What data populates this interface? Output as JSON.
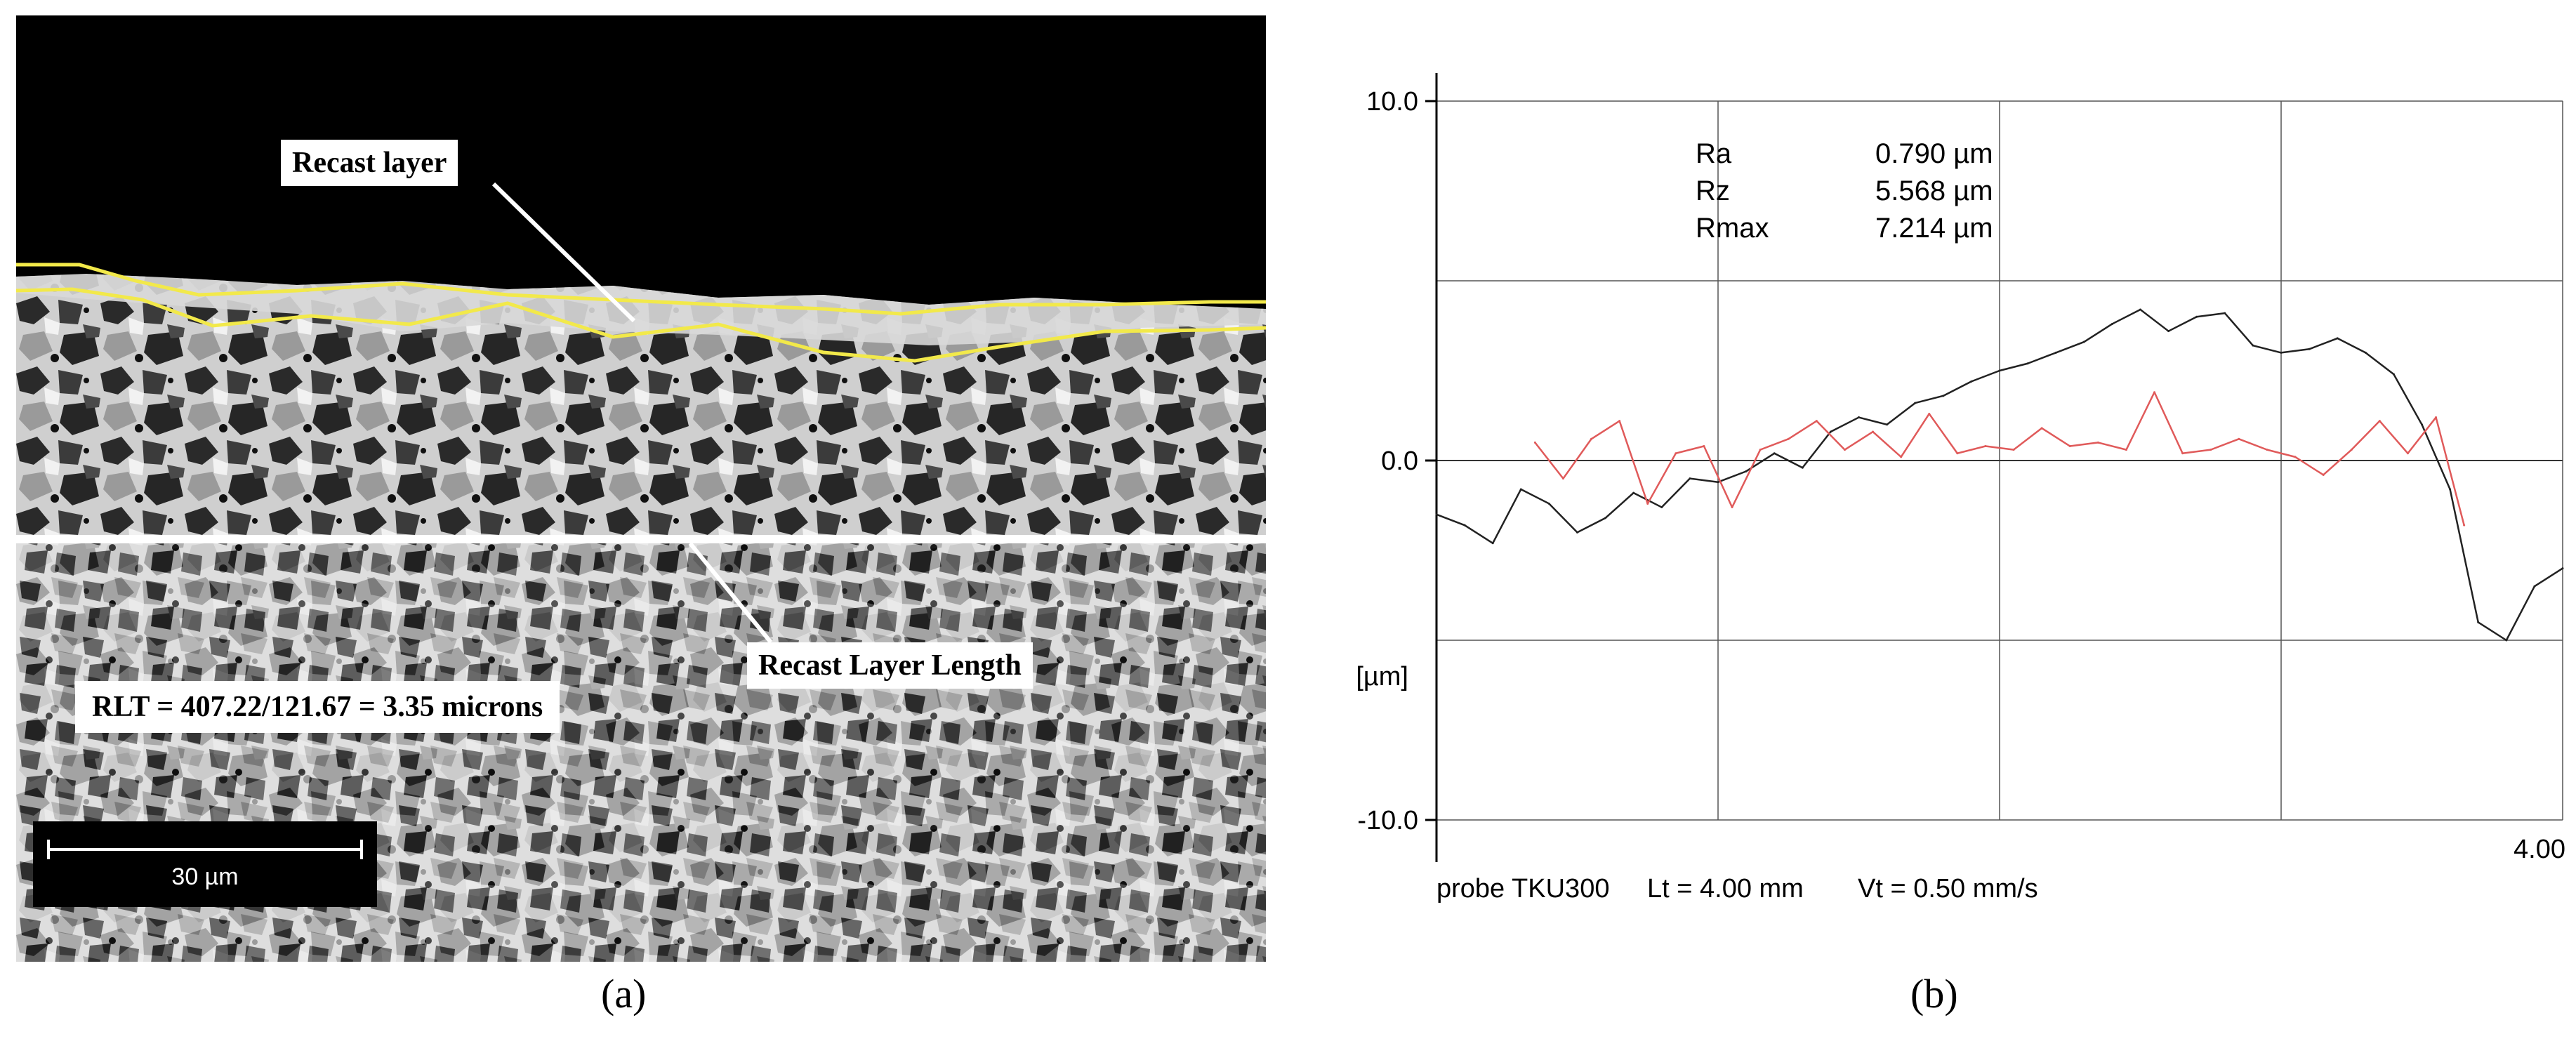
{
  "figure": {
    "panel_a": {
      "caption": "(a)",
      "callouts": {
        "recast_layer": "Recast layer",
        "recast_layer_length": "Recast Layer Length",
        "rlt": "RLT = 407.22/121.67 = 3.35 microns"
      },
      "scale_bar": "30 µm",
      "colors": {
        "outline": "#f2e94a",
        "background_top": "#000000"
      }
    },
    "panel_b": {
      "caption": "(b)",
      "chart_data": {
        "type": "line",
        "ylabel": "[µm]",
        "ylim": [
          -10.0,
          10.0
        ],
        "xlim": [
          0,
          4.0
        ],
        "y_ticks": [
          "10.0",
          "0.0",
          "-10.0"
        ],
        "x_tick_end": "4.00",
        "footer": {
          "probe": "probe TKU300",
          "lt": "Lt = 4.00  mm",
          "vt": "Vt = 0.50  mm/s"
        },
        "metrics": [
          {
            "name": "Ra",
            "value": "0.790 µm"
          },
          {
            "name": "Rz",
            "value": "5.568 µm"
          },
          {
            "name": "Rmax",
            "value": "7.214 µm"
          }
        ],
        "series": [
          {
            "color": "#222222",
            "x": [
              0.0,
              0.1,
              0.2,
              0.3,
              0.4,
              0.5,
              0.6,
              0.7,
              0.8,
              0.9,
              1.0,
              1.1,
              1.2,
              1.3,
              1.4,
              1.5,
              1.6,
              1.7,
              1.8,
              1.9,
              2.0,
              2.1,
              2.2,
              2.3,
              2.4,
              2.5,
              2.6,
              2.7,
              2.8,
              2.9,
              3.0,
              3.1,
              3.2,
              3.3,
              3.4,
              3.5,
              3.6,
              3.7,
              3.8,
              3.9,
              4.0
            ],
            "y": [
              -1.5,
              -1.8,
              -2.3,
              -0.8,
              -1.2,
              -2.0,
              -1.6,
              -0.9,
              -1.3,
              -0.5,
              -0.6,
              -0.3,
              0.2,
              -0.2,
              0.8,
              1.2,
              1.0,
              1.6,
              1.8,
              2.2,
              2.5,
              2.7,
              3.0,
              3.3,
              3.8,
              4.2,
              3.6,
              4.0,
              4.1,
              3.2,
              3.0,
              3.1,
              3.4,
              3.0,
              2.4,
              1.0,
              -0.8,
              -4.5,
              -5.0,
              -3.5,
              -3.0
            ]
          },
          {
            "color": "#e05a5a",
            "x": [
              0.35,
              0.45,
              0.55,
              0.65,
              0.75,
              0.85,
              0.95,
              1.05,
              1.15,
              1.25,
              1.35,
              1.45,
              1.55,
              1.65,
              1.75,
              1.85,
              1.95,
              2.05,
              2.15,
              2.25,
              2.35,
              2.45,
              2.55,
              2.65,
              2.75,
              2.85,
              2.95,
              3.05,
              3.15,
              3.25,
              3.35,
              3.45,
              3.55,
              3.65
            ],
            "y": [
              0.5,
              -0.5,
              0.6,
              1.1,
              -1.2,
              0.2,
              0.4,
              -1.3,
              0.3,
              0.6,
              1.1,
              0.3,
              0.8,
              0.1,
              1.3,
              0.2,
              0.4,
              0.3,
              0.9,
              0.4,
              0.5,
              0.3,
              1.9,
              0.2,
              0.3,
              0.6,
              0.3,
              0.1,
              -0.4,
              0.3,
              1.1,
              0.2,
              1.2,
              -1.8
            ]
          }
        ]
      }
    }
  }
}
